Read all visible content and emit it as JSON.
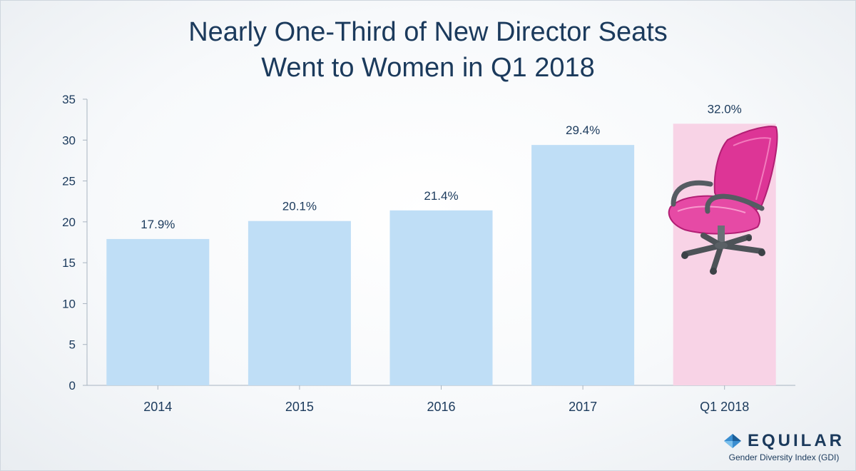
{
  "title_lines": [
    "Nearly One-Third of New Director Seats",
    "Went to Women in Q1 2018"
  ],
  "colors": {
    "bar": "#bfdef6",
    "highlight_bar": "#f8d3e6",
    "text": "#1b3a5c",
    "axis": "#a8b4c0",
    "chair": "#dd3596"
  },
  "chart_data": {
    "type": "bar",
    "title": "Nearly One-Third of New Director Seats Went to Women in Q1 2018",
    "categories": [
      "2014",
      "2015",
      "2016",
      "2017",
      "Q1 2018"
    ],
    "values": [
      17.9,
      20.1,
      21.4,
      29.4,
      32.0
    ],
    "data_labels": [
      "17.9%",
      "20.1%",
      "21.4%",
      "29.4%",
      "32.0%"
    ],
    "highlight_index": 4,
    "ylim": [
      0,
      35
    ],
    "yticks": [
      0,
      5,
      10,
      15,
      20,
      25,
      30,
      35
    ],
    "xlabel": "",
    "ylabel": "",
    "grid": false,
    "legend": "none",
    "highlight_icon": "office-chair-icon"
  },
  "brand": {
    "name": "EQUILAR",
    "subtitle": "Gender Diversity Index (GDI)",
    "icon": "diamond-logo-icon"
  }
}
